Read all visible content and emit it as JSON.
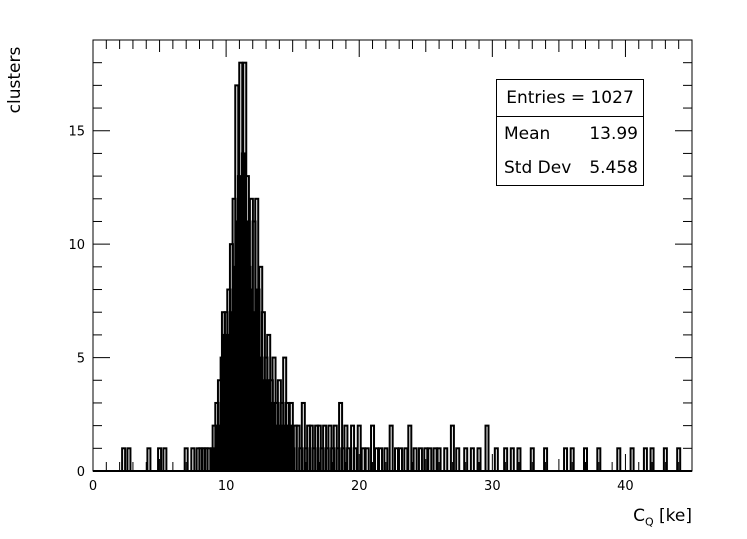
{
  "chart_data": {
    "type": "bar",
    "style": "step-histogram",
    "xlabel_main": "C",
    "xlabel_sub": "Q",
    "xlabel_unit": " [ke]",
    "ylabel": "clusters",
    "xlim": [
      0,
      45
    ],
    "ylim": [
      0,
      19
    ],
    "x_ticks": [
      0,
      10,
      20,
      30,
      40
    ],
    "y_ticks": [
      0,
      5,
      10,
      15
    ],
    "grid": false,
    "line_color": "#000000",
    "bin_width": 0.225,
    "stats": {
      "title": "Entries = 1027",
      "rows": [
        {
          "label": "Mean",
          "value": "13.99"
        },
        {
          "label": "Std Dev",
          "value": "5.458"
        }
      ]
    },
    "bins": [
      [
        2.3,
        1
      ],
      [
        2.7,
        1
      ],
      [
        4.2,
        1
      ],
      [
        5.0,
        1
      ],
      [
        5.4,
        1
      ],
      [
        7.0,
        1
      ],
      [
        7.5,
        1
      ],
      [
        7.9,
        1
      ],
      [
        8.1,
        1
      ],
      [
        8.3,
        1
      ],
      [
        8.5,
        1
      ],
      [
        8.7,
        1
      ],
      [
        9.0,
        1
      ],
      [
        9.1,
        2
      ],
      [
        9.3,
        3
      ],
      [
        9.4,
        2
      ],
      [
        9.5,
        4
      ],
      [
        9.7,
        5
      ],
      [
        9.8,
        7
      ],
      [
        9.9,
        6
      ],
      [
        10.0,
        7
      ],
      [
        10.1,
        5
      ],
      [
        10.2,
        8
      ],
      [
        10.3,
        6
      ],
      [
        10.4,
        10
      ],
      [
        10.5,
        7
      ],
      [
        10.6,
        12
      ],
      [
        10.7,
        9
      ],
      [
        10.8,
        17
      ],
      [
        10.9,
        11
      ],
      [
        11.0,
        13
      ],
      [
        11.1,
        18
      ],
      [
        11.2,
        10
      ],
      [
        11.3,
        14
      ],
      [
        11.4,
        18
      ],
      [
        11.5,
        11
      ],
      [
        11.6,
        13
      ],
      [
        11.7,
        9
      ],
      [
        11.8,
        8
      ],
      [
        11.9,
        12
      ],
      [
        12.0,
        7
      ],
      [
        12.1,
        11
      ],
      [
        12.2,
        6
      ],
      [
        12.3,
        12
      ],
      [
        12.4,
        8
      ],
      [
        12.5,
        5
      ],
      [
        12.6,
        9
      ],
      [
        12.7,
        4
      ],
      [
        12.8,
        7
      ],
      [
        12.9,
        3
      ],
      [
        13.0,
        5
      ],
      [
        13.1,
        4
      ],
      [
        13.2,
        6
      ],
      [
        13.3,
        2
      ],
      [
        13.4,
        4
      ],
      [
        13.5,
        3
      ],
      [
        13.6,
        5
      ],
      [
        13.7,
        2
      ],
      [
        13.8,
        3
      ],
      [
        13.9,
        1
      ],
      [
        14.0,
        4
      ],
      [
        14.1,
        2
      ],
      [
        14.2,
        3
      ],
      [
        14.3,
        1
      ],
      [
        14.4,
        5
      ],
      [
        14.5,
        2
      ],
      [
        14.6,
        3
      ],
      [
        14.7,
        1
      ],
      [
        14.8,
        2
      ],
      [
        14.9,
        3
      ],
      [
        15.0,
        1
      ],
      [
        15.2,
        2
      ],
      [
        15.4,
        2
      ],
      [
        15.6,
        1
      ],
      [
        15.8,
        3
      ],
      [
        16.0,
        1
      ],
      [
        16.2,
        2
      ],
      [
        16.4,
        2
      ],
      [
        16.6,
        1
      ],
      [
        16.8,
        2
      ],
      [
        17.0,
        2
      ],
      [
        17.2,
        1
      ],
      [
        17.4,
        2
      ],
      [
        17.6,
        1
      ],
      [
        17.8,
        2
      ],
      [
        18.0,
        1
      ],
      [
        18.2,
        2
      ],
      [
        18.4,
        1
      ],
      [
        18.6,
        3
      ],
      [
        18.8,
        1
      ],
      [
        19.0,
        2
      ],
      [
        19.2,
        1
      ],
      [
        19.5,
        2
      ],
      [
        19.7,
        1
      ],
      [
        20.0,
        2
      ],
      [
        20.3,
        1
      ],
      [
        20.6,
        1
      ],
      [
        21.0,
        2
      ],
      [
        21.3,
        1
      ],
      [
        21.6,
        1
      ],
      [
        22.0,
        1
      ],
      [
        22.4,
        2
      ],
      [
        22.8,
        1
      ],
      [
        23.1,
        1
      ],
      [
        23.5,
        1
      ],
      [
        23.8,
        2
      ],
      [
        24.2,
        1
      ],
      [
        24.6,
        1
      ],
      [
        25.0,
        1
      ],
      [
        25.3,
        1
      ],
      [
        25.7,
        1
      ],
      [
        26.0,
        1
      ],
      [
        26.5,
        1
      ],
      [
        27.0,
        2
      ],
      [
        27.4,
        1
      ],
      [
        28.0,
        1
      ],
      [
        28.5,
        1
      ],
      [
        29.0,
        1
      ],
      [
        29.6,
        2
      ],
      [
        30.3,
        1
      ],
      [
        31.0,
        1
      ],
      [
        31.5,
        1
      ],
      [
        32.0,
        1
      ],
      [
        33.0,
        1
      ],
      [
        34.0,
        1
      ],
      [
        35.5,
        1
      ],
      [
        36.0,
        1
      ],
      [
        37.0,
        1
      ],
      [
        38.0,
        1
      ],
      [
        39.5,
        1
      ],
      [
        40.5,
        1
      ],
      [
        41.5,
        1
      ],
      [
        42.0,
        1
      ],
      [
        43.0,
        1
      ],
      [
        44.0,
        1
      ]
    ]
  }
}
